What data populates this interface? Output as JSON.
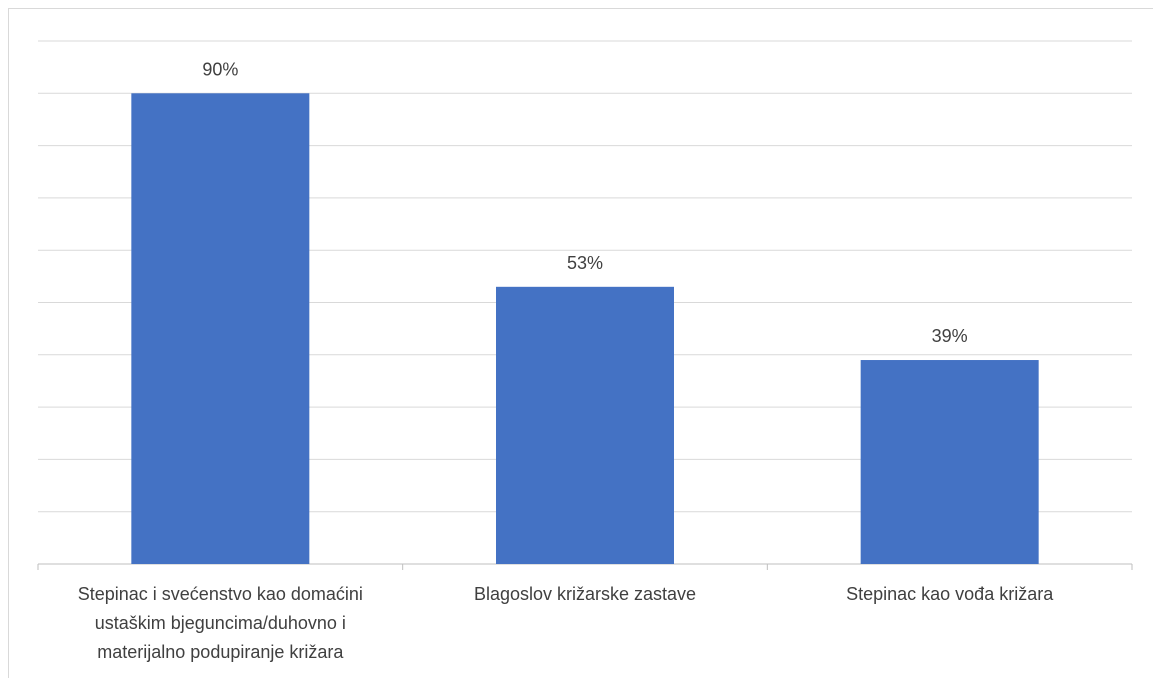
{
  "chart_data": {
    "type": "bar",
    "categories": [
      [
        "Stepinac i svećenstvo kao domaćini",
        "ustaškim bjeguncima/duhovno i",
        "materijalno podupiranje križara"
      ],
      [
        "Blagoslov križarske zastave"
      ],
      [
        "Stepinac kao vođa križara"
      ]
    ],
    "values": [
      90,
      53,
      39
    ],
    "data_labels": [
      "90%",
      "53%",
      "39%"
    ],
    "ylim": [
      0,
      100
    ],
    "gridline_step": 10,
    "grid": true,
    "legend": "none",
    "colors": {
      "bar": "#4472c4",
      "grid": "#d9d9d9",
      "text": "#404040"
    }
  }
}
